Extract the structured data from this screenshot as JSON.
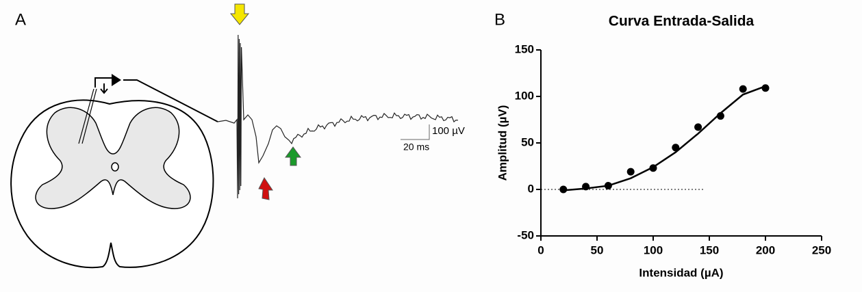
{
  "panels": {
    "a": {
      "label": "A",
      "scale_y": "100 µV",
      "scale_x": "20 ms"
    },
    "b": {
      "label": "B"
    }
  },
  "chart_data": {
    "type": "scatter",
    "title": "Curva Entrada-Salida",
    "x_label": "Intensidad (µA)",
    "y_label": "Amplitud  (µV)",
    "x": [
      20,
      40,
      60,
      80,
      100,
      120,
      140,
      160,
      180,
      200
    ],
    "values": [
      0,
      3,
      4,
      19,
      23,
      45,
      67,
      79,
      108,
      109
    ],
    "fit_x": [
      20,
      40,
      60,
      80,
      100,
      120,
      140,
      160,
      180,
      200
    ],
    "fit_values": [
      -1,
      1,
      4,
      12,
      24,
      40,
      60,
      82,
      102,
      111
    ],
    "color": "#000000",
    "xlim": [
      0,
      250
    ],
    "ylim": [
      -50,
      150
    ],
    "xticks": [
      0,
      50,
      100,
      150,
      200,
      250
    ],
    "yticks": [
      -50,
      0,
      50,
      100,
      150
    ],
    "zero_line": true
  }
}
